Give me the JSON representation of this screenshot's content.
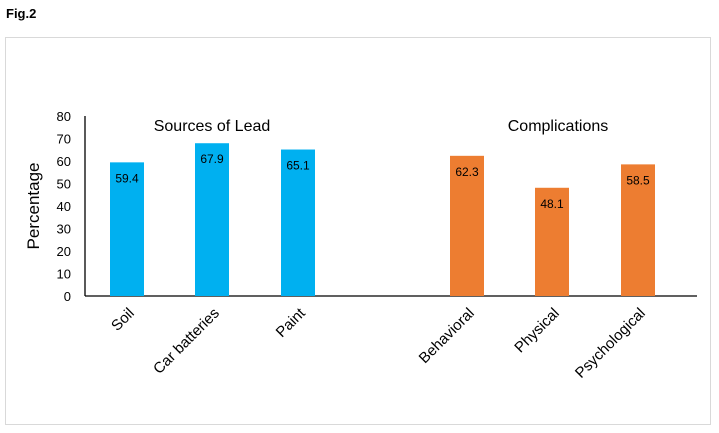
{
  "figure_label": "Fig.2",
  "chart_data": {
    "type": "bar",
    "ylabel": "Percentage",
    "xlabel": "",
    "ylim": [
      0,
      80
    ],
    "yticks": [
      0,
      10,
      20,
      30,
      40,
      50,
      60,
      70,
      80
    ],
    "grid": false,
    "groups": [
      {
        "title": "Sources of Lead",
        "color": "#00b0f0",
        "categories": [
          "Soil",
          "Car batteries",
          "Paint"
        ],
        "values": [
          59.4,
          67.9,
          65.1
        ]
      },
      {
        "title": "Complications",
        "color": "#ed7d31",
        "categories": [
          "Behavioral",
          "Physical",
          "Psychological"
        ],
        "values": [
          62.3,
          48.1,
          58.5
        ]
      }
    ]
  }
}
